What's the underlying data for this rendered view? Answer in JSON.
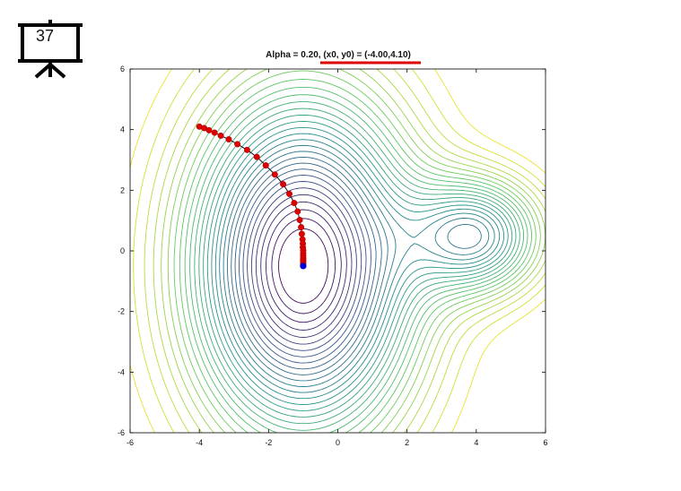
{
  "slide": {
    "number": "37"
  },
  "chart_data": {
    "type": "contour",
    "title": "Alpha = 0.20, (x0, y0) = (-4.00,4.10)",
    "title_emphasis": "(x0, y0) = (-4.00,4.10)",
    "xlim": [
      -6,
      6
    ],
    "ylim": [
      -6,
      6
    ],
    "xticks": [
      -6,
      -4,
      -2,
      0,
      2,
      4,
      6
    ],
    "yticks": [
      -6,
      -4,
      -2,
      0,
      2,
      4,
      6
    ],
    "xlabel": "",
    "ylabel": "",
    "grid": false,
    "colormap": "viridis",
    "colors": {
      "path_line": "#111111",
      "path_points": "#dd0000",
      "final_point": "#0000dd",
      "underline": "#dd0000"
    },
    "contour_sources": [
      {
        "center": [
          -1.0,
          -0.5
        ],
        "depth": 1.0,
        "sx": 2.2,
        "sy": 3.8
      },
      {
        "center": [
          4.0,
          0.5
        ],
        "depth": 0.55,
        "sx": 1.3,
        "sy": 1.3
      }
    ],
    "path": [
      [
        -4.0,
        4.1
      ],
      [
        -3.86,
        4.05
      ],
      [
        -3.72,
        3.98
      ],
      [
        -3.56,
        3.9
      ],
      [
        -3.38,
        3.8
      ],
      [
        -3.15,
        3.68
      ],
      [
        -2.9,
        3.52
      ],
      [
        -2.62,
        3.33
      ],
      [
        -2.34,
        3.1
      ],
      [
        -2.08,
        2.82
      ],
      [
        -1.82,
        2.52
      ],
      [
        -1.58,
        2.2
      ],
      [
        -1.4,
        1.88
      ],
      [
        -1.26,
        1.58
      ],
      [
        -1.16,
        1.3
      ],
      [
        -1.1,
        1.02
      ],
      [
        -1.06,
        0.78
      ],
      [
        -1.04,
        0.56
      ],
      [
        -1.02,
        0.38
      ],
      [
        -1.01,
        0.24
      ],
      [
        -1.01,
        0.12
      ],
      [
        -1.0,
        0.02
      ],
      [
        -1.0,
        -0.08
      ],
      [
        -1.0,
        -0.16
      ],
      [
        -1.0,
        -0.24
      ],
      [
        -1.0,
        -0.3
      ],
      [
        -1.0,
        -0.36
      ],
      [
        -1.0,
        -0.42
      ],
      [
        -1.0,
        -0.48
      ]
    ],
    "final_point": [
      -1.0,
      -0.5
    ]
  }
}
